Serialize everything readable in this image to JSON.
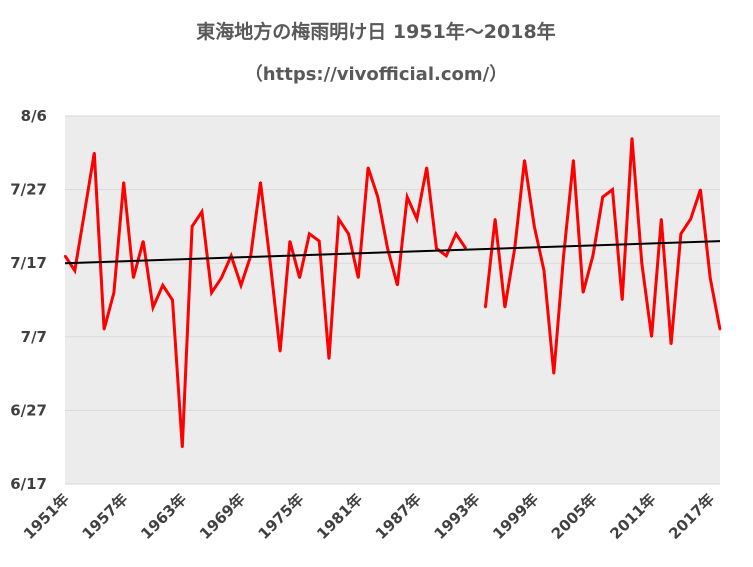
{
  "chart_data": {
    "type": "line",
    "title": "東海地方の梅雨明け日 1951年～2018年",
    "subtitle": "（https://vivofficial.com/）",
    "xlabel": "",
    "ylabel": "",
    "x_tick_labels": [
      "1951年",
      "1957年",
      "1963年",
      "1969年",
      "1975年",
      "1981年",
      "1987年",
      "1993年",
      "1999年",
      "2005年",
      "2011年",
      "2017年"
    ],
    "y_tick_labels": [
      "6/17",
      "6/27",
      "7/7",
      "7/17",
      "7/27",
      "8/6"
    ],
    "ylim": [
      "6/17",
      "8/6"
    ],
    "grid": "horizontal",
    "legend": "none",
    "series": [
      {
        "type": "line",
        "color": "#ff0000",
        "x": [
          1951,
          1952,
          1953,
          1954,
          1955,
          1956,
          1957,
          1958,
          1959,
          1960,
          1961,
          1962,
          1963,
          1964,
          1965,
          1966,
          1967,
          1968,
          1969,
          1970,
          1971,
          1972,
          1973,
          1974,
          1975,
          1976,
          1977,
          1978,
          1979,
          1980,
          1981,
          1982,
          1983,
          1984,
          1985,
          1986,
          1987,
          1988,
          1989,
          1990,
          1991,
          1992,
          1993,
          1994,
          1995,
          1996,
          1997,
          1998,
          1999,
          2000,
          2001,
          2002,
          2003,
          2004,
          2005,
          2006,
          2007,
          2008,
          2009,
          2010,
          2011,
          2012,
          2013,
          2014,
          2015,
          2016,
          2017,
          2018
        ],
        "values": [
          "7/18",
          "7/16",
          "7/24",
          "8/1",
          "7/8",
          "7/13",
          "7/28",
          "7/15",
          "7/20",
          "7/11",
          "7/14",
          "7/12",
          "6/22",
          "7/22",
          "7/24",
          "7/13",
          "7/15",
          "7/18",
          "7/14",
          "7/18",
          "7/28",
          "7/17",
          "7/5",
          "7/20",
          "7/15",
          "7/21",
          "7/20",
          "7/4",
          "7/23",
          "7/21",
          "7/15",
          "7/30",
          "7/26",
          "7/19",
          "7/14",
          "7/26",
          "7/23",
          "7/30",
          "7/19",
          "7/18",
          "7/21",
          "7/19",
          null,
          "7/11",
          "7/23",
          "7/11",
          "7/19",
          "7/31",
          "7/22",
          "7/16",
          "7/2",
          "7/18",
          "7/31",
          "7/13",
          "7/18",
          "7/26",
          "7/27",
          "7/12",
          "8/3",
          "7/17",
          "7/7",
          "7/23",
          "7/6",
          "7/21",
          "7/23",
          "7/27",
          "7/15",
          "7/8"
        ]
      },
      {
        "type": "trendline",
        "color": "#000000",
        "x": [
          1951,
          2018
        ],
        "values": [
          "7/17",
          "7/20"
        ]
      }
    ]
  }
}
